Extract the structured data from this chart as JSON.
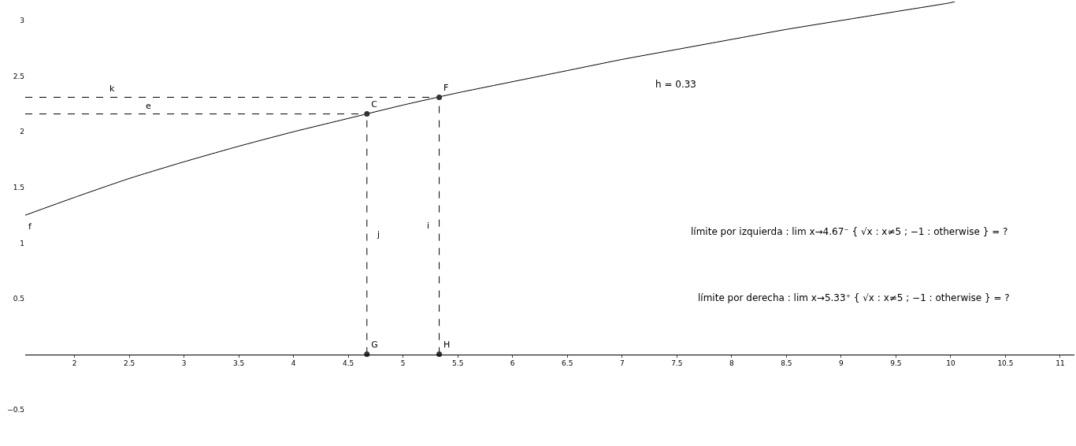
{
  "chart_data": {
    "type": "line",
    "xlim": [
      1.55,
      11.13
    ],
    "ylim": [
      -0.81,
      3.17
    ],
    "xticks": [
      2,
      2.5,
      3,
      3.5,
      4,
      4.5,
      5,
      5.5,
      6,
      6.5,
      7,
      7.5,
      8,
      8.5,
      9,
      9.5,
      10,
      10.5,
      11
    ],
    "yticks": [
      {
        "value": -0.5,
        "label": "−0.5"
      },
      0.5,
      1,
      1.5,
      2,
      2.5,
      3
    ],
    "legend": false,
    "series": [
      {
        "name": "f",
        "color": "#000000",
        "line_style": "solid",
        "x": [
          1.55,
          2,
          2.5,
          3,
          3.5,
          4,
          4.5,
          5,
          5.5,
          6,
          6.5,
          7,
          7.5,
          8,
          8.5,
          9,
          9.5,
          10,
          10.04
        ],
        "values": [
          1.25,
          1.41,
          1.58,
          1.73,
          1.87,
          2.0,
          2.12,
          2.24,
          2.35,
          2.45,
          2.55,
          2.65,
          2.74,
          2.83,
          2.92,
          3.0,
          3.08,
          3.16,
          3.17
        ]
      },
      {
        "name": "k",
        "type": "line",
        "color": "#000000",
        "line_style": "dashed",
        "x": [
          1.55,
          5.33
        ],
        "values": [
          2.31,
          2.31
        ]
      },
      {
        "name": "e",
        "type": "line",
        "color": "#000000",
        "line_style": "dashed",
        "x": [
          1.55,
          4.67
        ],
        "values": [
          2.16,
          2.16
        ]
      },
      {
        "name": "j",
        "type": "line",
        "color": "#000000",
        "line_style": "dashed",
        "x": [
          4.67,
          4.67
        ],
        "values": [
          0,
          2.16
        ]
      },
      {
        "name": "i",
        "type": "line",
        "color": "#000000",
        "line_style": "dashed",
        "x": [
          5.33,
          5.33
        ],
        "values": [
          0,
          2.31
        ]
      },
      {
        "type": "scatter",
        "color": "#333333",
        "marker": "circle",
        "x": [
          4.67,
          5.33,
          4.67,
          5.33
        ],
        "values": [
          2.16,
          2.31,
          0,
          0
        ],
        "value_labels": [
          "C",
          "F",
          "G",
          "H"
        ]
      }
    ],
    "annotations": [
      "h = 0.33",
      "límite por izquierda : lim x→4.67⁻ { √x : x≠5 ; −1 : otherwise } = ?",
      "límite por derecha : lim x→5.33⁺ { √x : x≠5 ; −1 : otherwise } = ?"
    ]
  }
}
